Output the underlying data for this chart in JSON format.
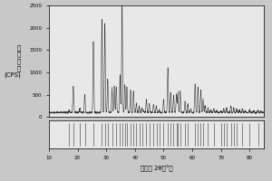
{
  "title": "",
  "ylabel": "衍\n射\n强\n度\n(CPS)",
  "xlabel": "衍射角 2θ（°）",
  "xlim": [
    10,
    85
  ],
  "ylim_main": [
    0,
    2500
  ],
  "xticks": [
    10,
    20,
    30,
    40,
    50,
    60,
    70,
    80
  ],
  "yticks_main": [
    0,
    500,
    1000,
    1500,
    2000,
    2500
  ],
  "bg_color": "#e8e8e8",
  "line_color": "#333333",
  "peaks": [
    [
      17.0,
      150
    ],
    [
      18.5,
      700
    ],
    [
      20.8,
      200
    ],
    [
      22.5,
      500
    ],
    [
      25.5,
      1700
    ],
    [
      26.8,
      100
    ],
    [
      28.5,
      2200
    ],
    [
      29.5,
      2100
    ],
    [
      30.5,
      850
    ],
    [
      32.0,
      650
    ],
    [
      32.8,
      700
    ],
    [
      33.5,
      680
    ],
    [
      34.8,
      950
    ],
    [
      35.5,
      2600
    ],
    [
      36.5,
      720
    ],
    [
      37.2,
      680
    ],
    [
      38.5,
      600
    ],
    [
      39.5,
      580
    ],
    [
      40.5,
      300
    ],
    [
      41.5,
      250
    ],
    [
      42.5,
      200
    ],
    [
      43.0,
      150
    ],
    [
      44.0,
      400
    ],
    [
      45.0,
      300
    ],
    [
      46.5,
      280
    ],
    [
      47.5,
      250
    ],
    [
      48.5,
      160
    ],
    [
      50.0,
      400
    ],
    [
      51.5,
      1100
    ],
    [
      52.5,
      550
    ],
    [
      53.5,
      480
    ],
    [
      54.5,
      520
    ],
    [
      55.0,
      560
    ],
    [
      55.8,
      580
    ],
    [
      57.5,
      350
    ],
    [
      58.5,
      300
    ],
    [
      59.5,
      180
    ],
    [
      61.0,
      750
    ],
    [
      62.0,
      680
    ],
    [
      63.0,
      600
    ],
    [
      63.8,
      400
    ],
    [
      64.5,
      250
    ],
    [
      65.5,
      200
    ],
    [
      66.5,
      160
    ],
    [
      67.5,
      180
    ],
    [
      68.5,
      150
    ],
    [
      70.0,
      140
    ],
    [
      71.0,
      180
    ],
    [
      72.0,
      200
    ],
    [
      73.5,
      250
    ],
    [
      74.5,
      200
    ],
    [
      75.5,
      180
    ],
    [
      76.5,
      160
    ],
    [
      77.5,
      180
    ],
    [
      78.5,
      140
    ],
    [
      80.0,
      160
    ],
    [
      81.5,
      140
    ],
    [
      83.0,
      150
    ],
    [
      84.0,
      130
    ]
  ],
  "diff_peaks": [
    17.0,
    18.5,
    20.8,
    22.5,
    25.5,
    28.5,
    29.5,
    30.5,
    32.0,
    33.5,
    34.8,
    35.5,
    36.5,
    37.2,
    38.5,
    39.5,
    40.5,
    41.5,
    42.5,
    44.0,
    45.0,
    46.5,
    47.5,
    48.5,
    50.0,
    51.5,
    52.5,
    53.5,
    54.5,
    55.0,
    55.8,
    57.5,
    58.5,
    61.0,
    62.0,
    63.0,
    63.8,
    65.5,
    67.5,
    70.0,
    71.0,
    72.0,
    73.5,
    74.5,
    75.5,
    77.5,
    80.0,
    83.0
  ],
  "baseline": 100
}
